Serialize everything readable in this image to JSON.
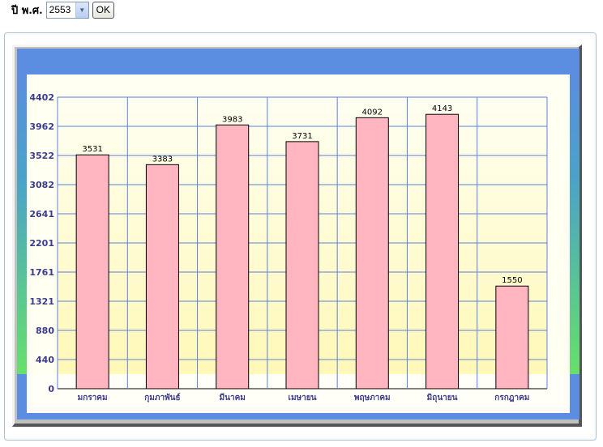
{
  "form": {
    "year_label": "ปี พ.ศ.",
    "year_value": "2553",
    "ok_label": "OK"
  },
  "chart_data": {
    "type": "bar",
    "categories": [
      "มกราคม",
      "กุมภาพันธ์",
      "มีนาคม",
      "เมษายน",
      "พฤษภาคม",
      "มิถุนายน",
      "กรกฎาคม"
    ],
    "values": [
      3531,
      3383,
      3983,
      3731,
      4092,
      4143,
      1550
    ],
    "yticks": [
      0,
      440,
      880,
      1321,
      1761,
      2201,
      2641,
      3082,
      3522,
      3962,
      4402
    ],
    "ylim": [
      0,
      4402
    ],
    "grid": true,
    "legend": "none",
    "colors": {
      "bar": "#ffb6c1",
      "bar_stroke": "#000000",
      "grid": "#5c7fe0",
      "band": "#5b8de0"
    }
  }
}
